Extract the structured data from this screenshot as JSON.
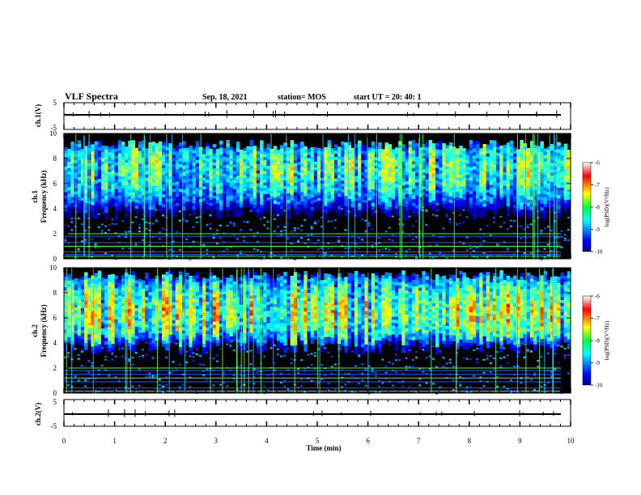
{
  "header": {
    "title": "VLF Spectra",
    "date": "Sep. 18, 2021",
    "station": "station= MOS",
    "start_ut": "start  UT =   20: 40: 1"
  },
  "chart_data": [
    {
      "type": "line",
      "panel": "ch1-waveform",
      "ylabel": "ch.1(V)",
      "y_ticks": [
        "5",
        "-5"
      ],
      "ylim": [
        -5,
        5
      ],
      "baseline": 0,
      "xlim": [
        0,
        10
      ]
    },
    {
      "type": "heatmap",
      "panel": "ch1-spectrogram",
      "ylabel_line1": "ch.1",
      "ylabel_line2": "Frequency (kHz)",
      "y_ticks": [
        "0",
        "2",
        "4",
        "6",
        "8",
        "10"
      ],
      "ylim": [
        0,
        10
      ],
      "xlim": [
        0,
        10
      ],
      "colorbar": {
        "label": "log(PSD)(V²/Hz)",
        "ticks": [
          "-6",
          "-7",
          "-8",
          "-9",
          "-10"
        ],
        "range": [
          -10,
          -6
        ]
      },
      "hiss_band_khz": [
        3.5,
        9.5
      ],
      "narrowband_lines_khz": [
        0.2,
        0.35,
        0.55,
        1.0,
        1.3,
        1.8,
        2.0
      ]
    },
    {
      "type": "heatmap",
      "panel": "ch2-spectrogram",
      "ylabel_line1": "ch.2",
      "ylabel_line2": "Frequency (kHz)",
      "y_ticks": [
        "0",
        "2",
        "4",
        "6",
        "8",
        "10"
      ],
      "ylim": [
        0,
        10
      ],
      "xlim": [
        0,
        10
      ],
      "colorbar": {
        "label": "log(PSD)(V²/Hz)",
        "ticks": [
          "-6",
          "-7",
          "-8",
          "-9",
          "-10"
        ],
        "range": [
          -10,
          -6
        ]
      },
      "hiss_band_khz": [
        3.5,
        9.8
      ],
      "narrowband_lines_khz": [
        0.15,
        0.4,
        0.9,
        1.2,
        1.5,
        1.8,
        2.0
      ]
    },
    {
      "type": "line",
      "panel": "ch2-waveform",
      "ylabel": "ch.2(V)",
      "y_ticks": [
        "5",
        "-5"
      ],
      "ylim": [
        -5,
        5
      ],
      "baseline": 0,
      "xlim": [
        0,
        10
      ]
    }
  ],
  "x_axis": {
    "label": "Time  (min)",
    "ticks": [
      "0",
      "1",
      "2",
      "3",
      "4",
      "5",
      "6",
      "7",
      "8",
      "9",
      "10"
    ]
  }
}
